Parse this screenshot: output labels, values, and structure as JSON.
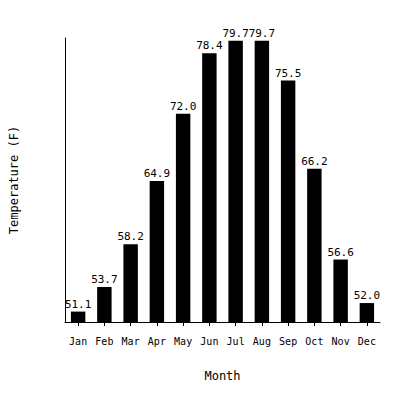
{
  "chart_data": {
    "type": "bar",
    "x_label": "Month",
    "y_label": "Temperature (F)",
    "categories": [
      "Jan",
      "Feb",
      "Mar",
      "Apr",
      "May",
      "Jun",
      "Jul",
      "Aug",
      "Sep",
      "Oct",
      "Nov",
      "Dec"
    ],
    "values": [
      51.1,
      53.7,
      58.2,
      64.9,
      72.0,
      78.4,
      79.7,
      79.7,
      75.5,
      66.2,
      56.6,
      52.0
    ],
    "value_labels": [
      "51.1",
      "53.7",
      "58.2",
      "64.9",
      "72.0",
      "78.4",
      "79.7",
      "79.7",
      "75.5",
      "66.2",
      "56.6",
      "52.0"
    ],
    "color": "#000000",
    "ylim": [
      50,
      80
    ],
    "grid": false,
    "data_labels": true,
    "tick_labels": "x"
  }
}
